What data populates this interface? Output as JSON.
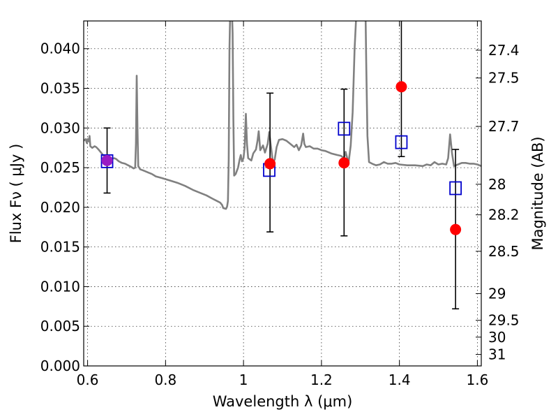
{
  "chart_data": {
    "type": "scatter",
    "xlabel": "Wavelength  λ (μm)",
    "ylabel": "Flux  Fν  ( μJy )",
    "ylabel_right": "Magnitude (AB)",
    "xlim": [
      0.59,
      1.61
    ],
    "ylim": [
      0.0,
      0.0435
    ],
    "grid": true,
    "x_ticks": [
      {
        "value": 0.6,
        "label": "0.6"
      },
      {
        "value": 0.8,
        "label": "0.8"
      },
      {
        "value": 1.0,
        "label": "1"
      },
      {
        "value": 1.2,
        "label": "1.2"
      },
      {
        "value": 1.4,
        "label": "1.4"
      },
      {
        "value": 1.6,
        "label": "1.6"
      }
    ],
    "y_ticks": [
      {
        "value": 0.0,
        "label": "0.000"
      },
      {
        "value": 0.005,
        "label": "0.005"
      },
      {
        "value": 0.01,
        "label": "0.010"
      },
      {
        "value": 0.015,
        "label": "0.015"
      },
      {
        "value": 0.02,
        "label": "0.020"
      },
      {
        "value": 0.025,
        "label": "0.025"
      },
      {
        "value": 0.03,
        "label": "0.030"
      },
      {
        "value": 0.035,
        "label": "0.035"
      },
      {
        "value": 0.04,
        "label": "0.040"
      }
    ],
    "right_ticks": [
      {
        "value": 27.4,
        "label": "27.4"
      },
      {
        "value": 27.5,
        "label": "27.5"
      },
      {
        "value": 27.7,
        "label": "27.7"
      },
      {
        "value": 28.0,
        "label": "28"
      },
      {
        "value": 28.2,
        "label": "28.2"
      },
      {
        "value": 28.5,
        "label": "28.5"
      },
      {
        "value": 29.0,
        "label": "29"
      },
      {
        "value": 29.5,
        "label": "29.5"
      },
      {
        "value": 30.0,
        "label": "30"
      },
      {
        "value": 31.0,
        "label": "31"
      }
    ],
    "spectrum": {
      "color": "#808080",
      "points": [
        [
          0.59,
          0.0284
        ],
        [
          0.595,
          0.0286
        ],
        [
          0.598,
          0.0281
        ],
        [
          0.6,
          0.0286
        ],
        [
          0.603,
          0.0283
        ],
        [
          0.605,
          0.029
        ],
        [
          0.607,
          0.0277
        ],
        [
          0.612,
          0.0275
        ],
        [
          0.618,
          0.0277
        ],
        [
          0.622,
          0.0276
        ],
        [
          0.628,
          0.0273
        ],
        [
          0.633,
          0.027
        ],
        [
          0.638,
          0.0267
        ],
        [
          0.643,
          0.0264
        ],
        [
          0.648,
          0.0261
        ],
        [
          0.655,
          0.026
        ],
        [
          0.662,
          0.0261
        ],
        [
          0.668,
          0.0262
        ],
        [
          0.673,
          0.0261
        ],
        [
          0.68,
          0.0258
        ],
        [
          0.688,
          0.0256
        ],
        [
          0.696,
          0.0255
        ],
        [
          0.704,
          0.0253
        ],
        [
          0.712,
          0.0251
        ],
        [
          0.718,
          0.0249
        ],
        [
          0.722,
          0.025
        ],
        [
          0.724,
          0.028
        ],
        [
          0.726,
          0.0366
        ],
        [
          0.728,
          0.03
        ],
        [
          0.73,
          0.0252
        ],
        [
          0.735,
          0.0248
        ],
        [
          0.745,
          0.0246
        ],
        [
          0.755,
          0.0244
        ],
        [
          0.765,
          0.0242
        ],
        [
          0.775,
          0.0239
        ],
        [
          0.79,
          0.0237
        ],
        [
          0.81,
          0.0234
        ],
        [
          0.83,
          0.0231
        ],
        [
          0.85,
          0.0227
        ],
        [
          0.87,
          0.0222
        ],
        [
          0.89,
          0.0218
        ],
        [
          0.905,
          0.0215
        ],
        [
          0.92,
          0.0211
        ],
        [
          0.932,
          0.0208
        ],
        [
          0.94,
          0.0206
        ],
        [
          0.945,
          0.0203
        ],
        [
          0.948,
          0.0199
        ],
        [
          0.955,
          0.0198
        ],
        [
          0.958,
          0.0201
        ],
        [
          0.96,
          0.0208
        ],
        [
          0.962,
          0.026
        ],
        [
          0.964,
          0.04
        ],
        [
          0.966,
          0.045
        ],
        [
          0.97,
          0.045
        ],
        [
          0.972,
          0.042
        ],
        [
          0.974,
          0.031
        ],
        [
          0.976,
          0.024
        ],
        [
          0.98,
          0.0242
        ],
        [
          0.986,
          0.025
        ],
        [
          0.99,
          0.026
        ],
        [
          0.993,
          0.0266
        ],
        [
          0.996,
          0.0258
        ],
        [
          1.0,
          0.0262
        ],
        [
          1.003,
          0.0276
        ],
        [
          1.006,
          0.0318
        ],
        [
          1.009,
          0.028
        ],
        [
          1.012,
          0.0262
        ],
        [
          1.02,
          0.0259
        ],
        [
          1.025,
          0.0268
        ],
        [
          1.032,
          0.0273
        ],
        [
          1.036,
          0.0284
        ],
        [
          1.039,
          0.0296
        ],
        [
          1.043,
          0.0272
        ],
        [
          1.05,
          0.0278
        ],
        [
          1.055,
          0.0269
        ],
        [
          1.062,
          0.028
        ],
        [
          1.066,
          0.0295
        ],
        [
          1.07,
          0.0279
        ],
        [
          1.075,
          0.0258
        ],
        [
          1.08,
          0.026
        ],
        [
          1.085,
          0.0276
        ],
        [
          1.091,
          0.0285
        ],
        [
          1.1,
          0.0286
        ],
        [
          1.11,
          0.0284
        ],
        [
          1.12,
          0.028
        ],
        [
          1.13,
          0.0276
        ],
        [
          1.136,
          0.0279
        ],
        [
          1.142,
          0.0272
        ],
        [
          1.148,
          0.0278
        ],
        [
          1.153,
          0.0293
        ],
        [
          1.156,
          0.028
        ],
        [
          1.16,
          0.0276
        ],
        [
          1.17,
          0.0277
        ],
        [
          1.18,
          0.0274
        ],
        [
          1.19,
          0.0274
        ],
        [
          1.2,
          0.0272
        ],
        [
          1.21,
          0.0271
        ],
        [
          1.225,
          0.0268
        ],
        [
          1.24,
          0.0266
        ],
        [
          1.25,
          0.0265
        ],
        [
          1.258,
          0.0262
        ],
        [
          1.262,
          0.027
        ],
        [
          1.266,
          0.0262
        ],
        [
          1.27,
          0.0258
        ],
        [
          1.275,
          0.0278
        ],
        [
          1.28,
          0.032
        ],
        [
          1.285,
          0.04
        ],
        [
          1.29,
          0.045
        ],
        [
          1.313,
          0.045
        ],
        [
          1.315,
          0.038
        ],
        [
          1.318,
          0.029
        ],
        [
          1.322,
          0.0257
        ],
        [
          1.33,
          0.0255
        ],
        [
          1.34,
          0.0253
        ],
        [
          1.35,
          0.0254
        ],
        [
          1.36,
          0.0257
        ],
        [
          1.37,
          0.0255
        ],
        [
          1.38,
          0.0255
        ],
        [
          1.39,
          0.0256
        ],
        [
          1.4,
          0.0254
        ],
        [
          1.42,
          0.0253
        ],
        [
          1.44,
          0.0253
        ],
        [
          1.46,
          0.0252
        ],
        [
          1.47,
          0.0254
        ],
        [
          1.48,
          0.0253
        ],
        [
          1.49,
          0.0257
        ],
        [
          1.5,
          0.0254
        ],
        [
          1.51,
          0.0255
        ],
        [
          1.52,
          0.0254
        ],
        [
          1.525,
          0.0262
        ],
        [
          1.53,
          0.0292
        ],
        [
          1.535,
          0.0268
        ],
        [
          1.54,
          0.0252
        ],
        [
          1.55,
          0.0254
        ],
        [
          1.56,
          0.0256
        ],
        [
          1.57,
          0.0256
        ],
        [
          1.58,
          0.0255
        ],
        [
          1.59,
          0.0255
        ],
        [
          1.6,
          0.0254
        ],
        [
          1.61,
          0.0252
        ]
      ]
    },
    "observed": {
      "color": "#ff0000",
      "points": [
        {
          "x": 0.65,
          "y": 0.0259,
          "err_low": 0.0218,
          "err_high": 0.03,
          "color": "#9a1cc4"
        },
        {
          "x": 1.068,
          "y": 0.0255,
          "err_low": 0.0169,
          "err_high": 0.0344
        },
        {
          "x": 1.258,
          "y": 0.0256,
          "err_low": 0.0164,
          "err_high": 0.0349
        },
        {
          "x": 1.405,
          "y": 0.0352,
          "err_low": 0.0264,
          "err_high": 0.044
        },
        {
          "x": 1.544,
          "y": 0.0172,
          "err_low": 0.0072,
          "err_high": 0.0273
        }
      ]
    },
    "model": {
      "color": "#0000cc",
      "points": [
        {
          "x": 0.65,
          "y": 0.0259
        },
        {
          "x": 1.066,
          "y": 0.0248
        },
        {
          "x": 1.258,
          "y": 0.03
        },
        {
          "x": 1.405,
          "y": 0.0283
        },
        {
          "x": 1.544,
          "y": 0.0225
        }
      ]
    }
  }
}
